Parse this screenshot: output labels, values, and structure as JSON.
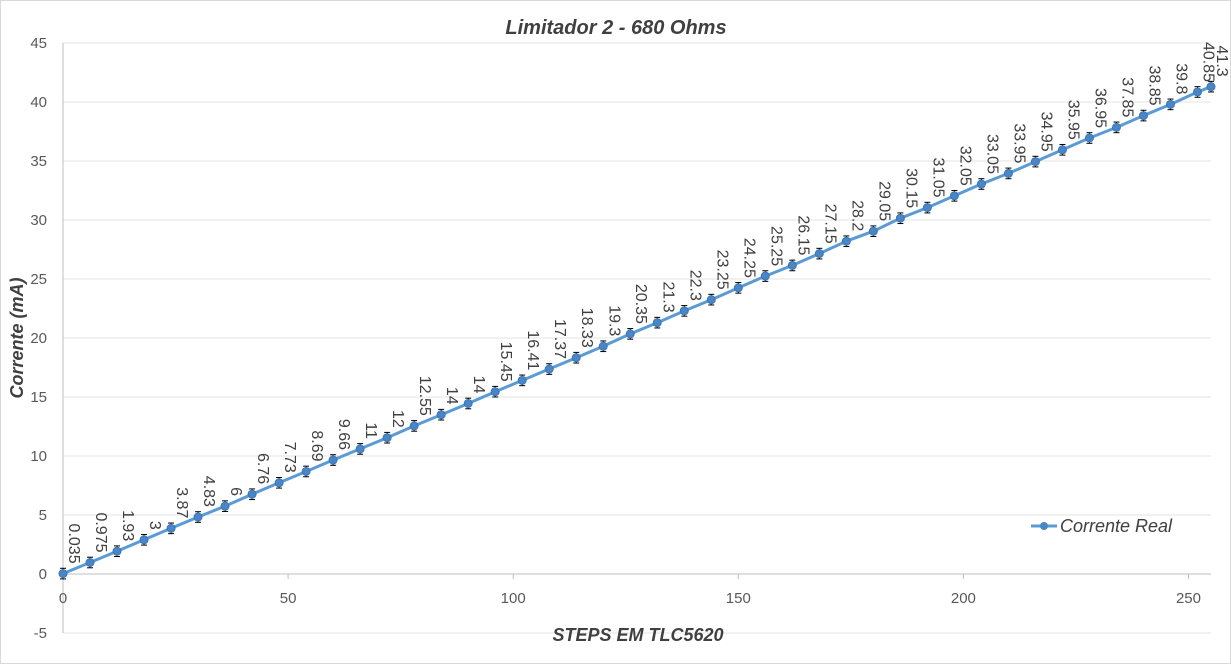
{
  "chart_data": {
    "type": "line",
    "title": "Limitador 2 - 680 Ohms",
    "xlabel": "STEPS EM TLC5620",
    "ylabel": "Corrente (mA)",
    "xlim": [
      0,
      255
    ],
    "ylim": [
      -5,
      45
    ],
    "x_ticks": [
      "0",
      "50",
      "100",
      "150",
      "200",
      "250"
    ],
    "y_ticks": [
      "-5",
      "0",
      "5",
      "10",
      "15",
      "20",
      "25",
      "30",
      "35",
      "40",
      "45"
    ],
    "grid": true,
    "legend_position": "bottom-right",
    "error_bars": true,
    "colors": {
      "series": "#5b9bd5",
      "marker": "#4a86c5",
      "grid": "#e3e3e3",
      "text": "#404040"
    },
    "series": [
      {
        "name": "Corrente Real",
        "x": [
          0,
          6,
          12,
          18,
          24,
          30,
          36,
          42,
          48,
          54,
          60,
          66,
          72,
          78,
          84,
          90,
          96,
          102,
          108,
          114,
          120,
          126,
          132,
          138,
          144,
          150,
          156,
          162,
          168,
          174,
          180,
          186,
          192,
          198,
          204,
          210,
          216,
          222,
          228,
          234,
          240,
          246,
          252,
          255
        ],
        "values": [
          0.035,
          0.975,
          1.93,
          3,
          3.87,
          4.83,
          6,
          6.76,
          7.73,
          8.69,
          9.66,
          11,
          12,
          12.55,
          14,
          14,
          15.45,
          16.41,
          17.37,
          18.33,
          19.3,
          20.35,
          21.3,
          22.3,
          23.25,
          24.25,
          25.25,
          26.15,
          27.15,
          28.2,
          29.05,
          30.15,
          31.05,
          32.05,
          33.05,
          33.95,
          34.95,
          35.95,
          36.95,
          37.85,
          38.85,
          39.8,
          40.85,
          41.3
        ],
        "plotted": [
          0.035,
          0.975,
          1.93,
          2.9,
          3.87,
          4.83,
          5.75,
          6.76,
          7.73,
          8.69,
          9.66,
          10.6,
          11.55,
          12.55,
          13.5,
          14.45,
          15.45,
          16.41,
          17.37,
          18.33,
          19.3,
          20.35,
          21.3,
          22.3,
          23.25,
          24.25,
          25.25,
          26.15,
          27.15,
          28.2,
          29.05,
          30.15,
          31.05,
          32.05,
          33.05,
          33.95,
          34.95,
          35.95,
          36.95,
          37.85,
          38.85,
          39.8,
          40.85,
          41.3
        ],
        "labels": [
          "0.035",
          "0.975",
          "1.93",
          "3",
          "3.87",
          "4.83",
          "6",
          "6.76",
          "7.73",
          "8.69",
          "9.66",
          "11",
          "12",
          "12.55",
          "14",
          "14",
          "15.45",
          "16.41",
          "17.37",
          "18.33",
          "19.3",
          "20.35",
          "21.3",
          "22.3",
          "23.25",
          "24.25",
          "25.25",
          "26.15",
          "27.15",
          "28.2",
          "29.05",
          "30.15",
          "31.05",
          "32.05",
          "33.05",
          "33.95",
          "34.95",
          "35.95",
          "36.95",
          "37.85",
          "38.85",
          "39.8",
          "40.85",
          "41.3"
        ]
      }
    ]
  }
}
